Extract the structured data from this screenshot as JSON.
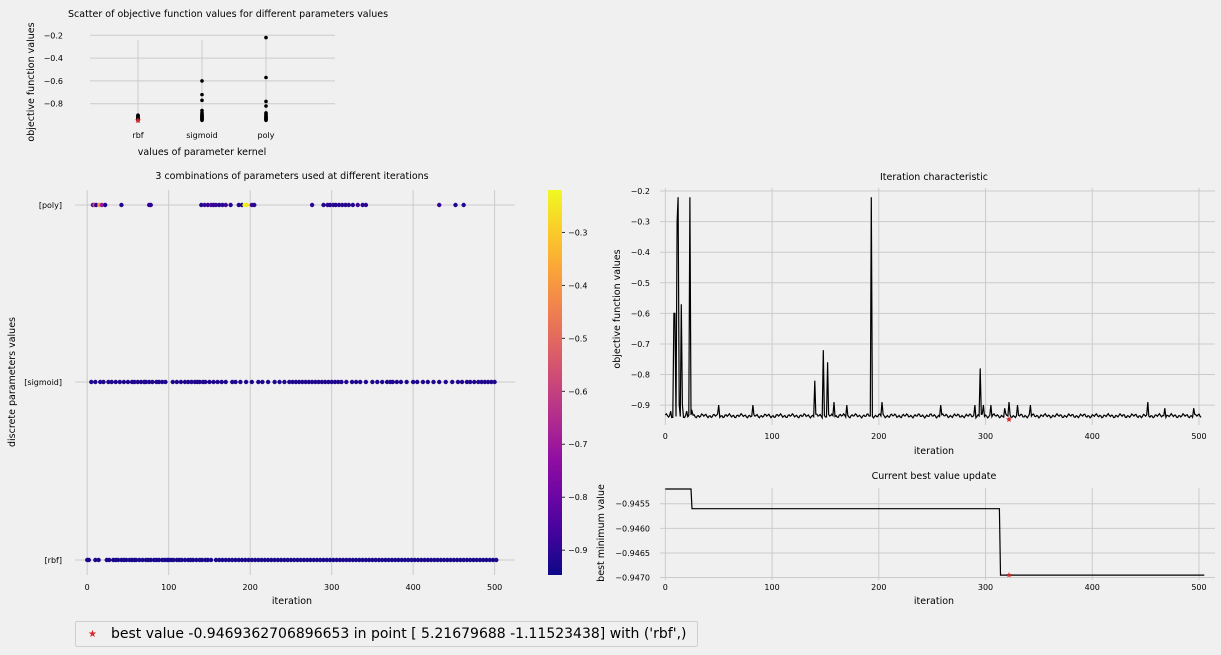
{
  "colors": {
    "background": "#f0f0f0",
    "grid": "#cbcbcb",
    "point": "#000000",
    "best": "#d62728",
    "line": "#000000"
  },
  "chart_data": [
    {
      "type": "scatter",
      "title": "Scatter of objective function values for different parameters values",
      "xlabel": "values of parameter kernel",
      "ylabel": "objective function values",
      "categories": [
        "rbf",
        "sigmoid",
        "poly"
      ],
      "yticks": [
        -0.2,
        -0.4,
        -0.6,
        -0.8
      ],
      "ytick_labels": [
        "−0.2",
        "−0.4",
        "−0.6",
        "−0.8"
      ],
      "ylim": [
        -0.96,
        -0.18
      ],
      "series": [
        {
          "category": "rbf",
          "values": [
            -0.9469,
            -0.944,
            -0.94,
            -0.935,
            -0.93,
            -0.925,
            -0.92,
            -0.915,
            -0.91,
            -0.905,
            -0.9
          ]
        },
        {
          "category": "sigmoid",
          "values": [
            -0.945,
            -0.94,
            -0.935,
            -0.93,
            -0.925,
            -0.92,
            -0.915,
            -0.91,
            -0.905,
            -0.9,
            -0.89,
            -0.88,
            -0.86,
            -0.77,
            -0.72,
            -0.6
          ]
        },
        {
          "category": "poly",
          "values": [
            -0.945,
            -0.94,
            -0.935,
            -0.93,
            -0.925,
            -0.92,
            -0.915,
            -0.91,
            -0.9,
            -0.89,
            -0.88,
            -0.82,
            -0.78,
            -0.57,
            -0.22
          ]
        }
      ],
      "best_point": {
        "category": "rbf",
        "value": -0.9469
      }
    },
    {
      "type": "scatter",
      "title": "3 combinations of parameters used at different iterations",
      "xlabel": "iteration",
      "ylabel": "discrete parameters values",
      "categories": [
        "[rbf]",
        "[sigmoid]",
        "[poly]"
      ],
      "xticks": [
        0,
        100,
        200,
        300,
        400,
        500
      ],
      "xlim": [
        -15,
        525
      ],
      "colorbar": {
        "min": -0.9469,
        "max": -0.22,
        "ticks": [
          -0.3,
          -0.4,
          -0.5,
          -0.6,
          -0.7,
          -0.8,
          -0.9
        ],
        "tick_labels": [
          "−0.3",
          "−0.4",
          "−0.5",
          "−0.6",
          "−0.7",
          "−0.8",
          "−0.9"
        ],
        "colormap": "plasma"
      },
      "points": {
        "rbf": [
          0,
          2,
          10,
          14,
          24,
          27,
          32,
          35,
          38,
          42,
          45,
          48,
          52,
          55,
          58,
          60,
          64,
          68,
          72,
          75,
          78,
          82,
          85,
          88,
          92,
          95,
          98,
          100,
          103,
          106,
          110,
          113,
          116,
          120,
          124,
          127,
          130,
          134,
          138,
          141,
          145,
          148,
          152,
          158,
          162,
          166,
          170,
          174,
          178,
          182,
          186,
          190,
          194,
          198,
          202,
          206,
          210,
          214,
          218,
          222,
          226,
          230,
          234,
          238,
          242,
          246,
          250,
          254,
          258,
          262,
          266,
          270,
          274,
          278,
          282,
          286,
          290,
          294,
          298,
          302,
          306,
          310,
          314,
          318,
          322,
          326,
          330,
          334,
          338,
          342,
          346,
          350,
          354,
          358,
          362,
          366,
          370,
          374,
          378,
          382,
          386,
          390,
          394,
          398,
          402,
          406,
          410,
          414,
          418,
          422,
          426,
          430,
          434,
          438,
          442,
          446,
          450,
          454,
          458,
          462,
          466,
          470,
          474,
          478,
          482,
          486,
          490,
          494,
          498,
          502
        ],
        "sigmoid": [
          5,
          10,
          16,
          20,
          26,
          30,
          35,
          40,
          45,
          50,
          55,
          58,
          62,
          66,
          70,
          72,
          76,
          80,
          85,
          88,
          92,
          96,
          105,
          110,
          115,
          120,
          124,
          128,
          132,
          135,
          138,
          142,
          145,
          150,
          155,
          160,
          165,
          170,
          178,
          182,
          188,
          195,
          202,
          210,
          215,
          222,
          230,
          236,
          242,
          248,
          252,
          256,
          260,
          264,
          268,
          272,
          276,
          280,
          284,
          288,
          292,
          296,
          300,
          304,
          308,
          312,
          318,
          325,
          330,
          335,
          342,
          350,
          356,
          362,
          368,
          372,
          375,
          380,
          385,
          392,
          400,
          405,
          412,
          418,
          425,
          432,
          440,
          448,
          455,
          460,
          466,
          470,
          475,
          480,
          484,
          488,
          492,
          496,
          500
        ],
        "poly": [
          [
            7,
            -0.87
          ],
          [
            9,
            -0.55
          ],
          [
            11,
            -0.9
          ],
          [
            15,
            -0.4
          ],
          [
            18,
            -0.7
          ],
          [
            22,
            -0.92
          ],
          [
            42,
            -0.91
          ],
          [
            76,
            -0.88
          ],
          [
            78,
            -0.9
          ],
          [
            140,
            -0.92
          ],
          [
            144,
            -0.88
          ],
          [
            148,
            -0.9
          ],
          [
            152,
            -0.85
          ],
          [
            155,
            -0.9
          ],
          [
            158,
            -0.88
          ],
          [
            162,
            -0.92
          ],
          [
            166,
            -0.9
          ],
          [
            170,
            -0.88
          ],
          [
            176,
            -0.91
          ],
          [
            186,
            -0.9
          ],
          [
            190,
            -0.93
          ],
          [
            193,
            -0.22
          ],
          [
            196,
            -0.25
          ],
          [
            202,
            -0.88
          ],
          [
            205,
            -0.91
          ],
          [
            276,
            -0.9
          ],
          [
            290,
            -0.92
          ],
          [
            295,
            -0.89
          ],
          [
            298,
            -0.92
          ],
          [
            302,
            -0.9
          ],
          [
            305,
            -0.92
          ],
          [
            309,
            -0.91
          ],
          [
            313,
            -0.9
          ],
          [
            317,
            -0.92
          ],
          [
            321,
            -0.9
          ],
          [
            326,
            -0.92
          ],
          [
            332,
            -0.88
          ],
          [
            338,
            -0.91
          ],
          [
            342,
            -0.9
          ],
          [
            432,
            -0.89
          ],
          [
            452,
            -0.92
          ],
          [
            462,
            -0.91
          ]
        ]
      },
      "color_points": {
        "rbf": -0.93,
        "sigmoid": -0.92
      }
    },
    {
      "type": "line",
      "title": "Iteration characteristic",
      "xlabel": "iteration",
      "ylabel": "objective function values",
      "xticks": [
        0,
        100,
        200,
        300,
        400,
        500
      ],
      "yticks": [
        -0.2,
        -0.3,
        -0.4,
        -0.5,
        -0.6,
        -0.7,
        -0.8,
        -0.9
      ],
      "ytick_labels": [
        "−0.2",
        "−0.3",
        "−0.4",
        "−0.5",
        "−0.6",
        "−0.7",
        "−0.8",
        "−0.9"
      ],
      "xlim": [
        -5,
        515
      ],
      "ylim": [
        -0.965,
        -0.19
      ],
      "baseline": -0.935,
      "spikes": [
        [
          5,
          -0.92
        ],
        [
          8,
          -0.6
        ],
        [
          9,
          -0.6
        ],
        [
          11,
          -0.3
        ],
        [
          12,
          -0.22
        ],
        [
          13,
          -0.9
        ],
        [
          15,
          -0.57
        ],
        [
          16,
          -0.9
        ],
        [
          20,
          -0.92
        ],
        [
          23,
          -0.22
        ],
        [
          25,
          -0.92
        ],
        [
          50,
          -0.9
        ],
        [
          82,
          -0.9
        ],
        [
          140,
          -0.82
        ],
        [
          148,
          -0.72
        ],
        [
          152,
          -0.76
        ],
        [
          158,
          -0.89
        ],
        [
          170,
          -0.9
        ],
        [
          193,
          -0.22
        ],
        [
          203,
          -0.89
        ],
        [
          258,
          -0.9
        ],
        [
          290,
          -0.9
        ],
        [
          295,
          -0.78
        ],
        [
          298,
          -0.9
        ],
        [
          305,
          -0.9
        ],
        [
          318,
          -0.91
        ],
        [
          322,
          -0.89
        ],
        [
          330,
          -0.9
        ],
        [
          342,
          -0.9
        ],
        [
          452,
          -0.89
        ],
        [
          468,
          -0.91
        ],
        [
          495,
          -0.91
        ]
      ],
      "best_point": {
        "x": 322,
        "y": -0.9469
      }
    },
    {
      "type": "line",
      "title": "Current best value update",
      "xlabel": "iteration",
      "ylabel": "best minimum value",
      "xticks": [
        0,
        100,
        200,
        300,
        400,
        500
      ],
      "yticks": [
        -0.9455,
        -0.946,
        -0.9465,
        -0.947
      ],
      "ytick_labels": [
        "−0.9455",
        "−0.9460",
        "−0.9465",
        "−0.9470"
      ],
      "xlim": [
        -5,
        515
      ],
      "ylim": [
        -0.94705,
        -0.94518
      ],
      "steps": [
        [
          0,
          -0.9452
        ],
        [
          24,
          -0.9452
        ],
        [
          25,
          -0.9456
        ],
        [
          313,
          -0.9456
        ],
        [
          314,
          -0.94695
        ],
        [
          505,
          -0.94695
        ]
      ],
      "best_point": {
        "x": 322,
        "y": -0.94695
      }
    }
  ],
  "legend": {
    "marker": "★",
    "label": "best value -0.9469362706896653 in point [ 5.21679688 -1.11523438] with ('rbf',)"
  }
}
